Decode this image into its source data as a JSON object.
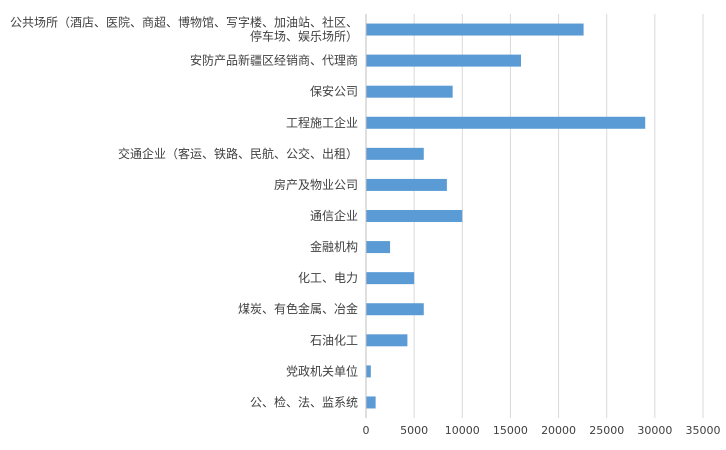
{
  "chart_data": {
    "type": "bar",
    "orientation": "horizontal",
    "title": "",
    "xlabel": "",
    "ylabel": "",
    "categories": [
      [
        "公共场所（酒店、医院、商超、博物馆、写字楼、加油站、社区、",
        "停车场、娱乐场所）"
      ],
      [
        "安防产品新疆区经销商、代理商"
      ],
      [
        "保安公司"
      ],
      [
        "工程施工企业"
      ],
      [
        "交通企业（客运、铁路、民航、公交、出租）"
      ],
      [
        "房产及物业公司"
      ],
      [
        "通信企业"
      ],
      [
        "金融机构"
      ],
      [
        "化工、电力"
      ],
      [
        "煤炭、有色金属、冶金"
      ],
      [
        "石油化工"
      ],
      [
        "党政机关单位"
      ],
      [
        "公、检、法、监系统"
      ]
    ],
    "values": [
      22600,
      16100,
      9000,
      29000,
      6000,
      8400,
      10000,
      2500,
      5000,
      6000,
      4300,
      500,
      1000
    ],
    "xlim": [
      0,
      35000
    ],
    "xticks": [
      "0",
      "5000",
      "10000",
      "15000",
      "20000",
      "25000",
      "30000",
      "35000"
    ],
    "grid": "vertical",
    "legend": "none",
    "bar_color": "#5b9bd5",
    "grid_color": "#d9d9d9",
    "axis_color": "#bfbfbf"
  }
}
